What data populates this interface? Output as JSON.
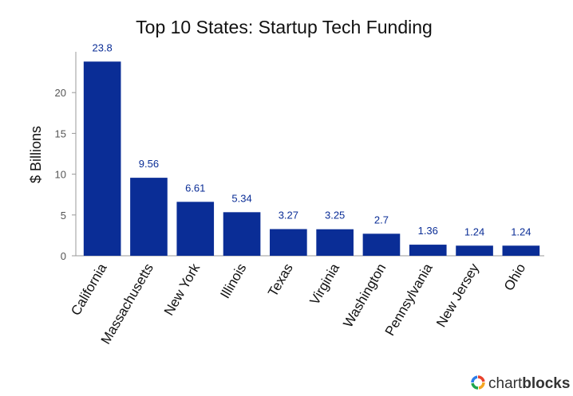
{
  "chart_data": {
    "type": "bar",
    "title": "Top 10 States: Startup Tech Funding",
    "xlabel": "",
    "ylabel": "$ Billions",
    "categories": [
      "California",
      "Massachusetts",
      "New York",
      "Illinois",
      "Texas",
      "Virginia",
      "Washington",
      "Pennsylvania",
      "New Jersey",
      "Ohio"
    ],
    "values": [
      23.8,
      9.56,
      6.61,
      5.34,
      3.27,
      3.25,
      2.7,
      1.36,
      1.24,
      1.24
    ],
    "value_labels": [
      "23.8",
      "9.56",
      "6.61",
      "5.34",
      "3.27",
      "3.25",
      "2.7",
      "1.36",
      "1.24",
      "1.24"
    ],
    "yticks": [
      "0",
      "5",
      "10",
      "15",
      "20"
    ],
    "ylim": [
      0,
      25
    ],
    "grid": false,
    "legend": "none",
    "bar_color": "#0a2d96",
    "label_color": "#0a2d96"
  },
  "branding": {
    "text_light": "chart",
    "text_bold": "blocks",
    "logo_colors": [
      "#e8412c",
      "#f5a623",
      "#1ea64c",
      "#2b7de9"
    ]
  }
}
